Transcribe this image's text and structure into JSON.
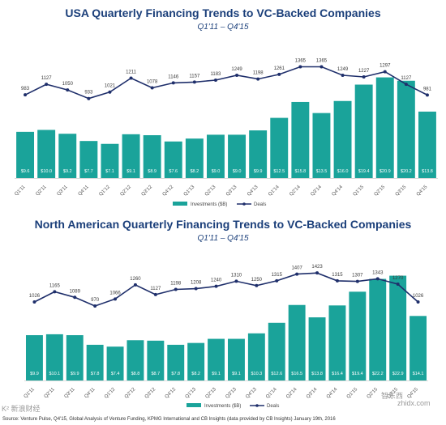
{
  "colors": {
    "bar": "#1aa39a",
    "line": "#1f2f6b",
    "title": "#1b3f7a"
  },
  "chart_data": [
    {
      "type": "bar",
      "title": "USA Quarterly Financing Trends to VC-Backed Companies",
      "subtitle": "Q1'11 – Q4'15",
      "categories": [
        "Q1'11",
        "Q2'11",
        "Q3'11",
        "Q4'11",
        "Q1'12",
        "Q2'12",
        "Q3'12",
        "Q4'12",
        "Q1'13",
        "Q2'13",
        "Q3'13",
        "Q4'13",
        "Q1'14",
        "Q2'14",
        "Q3'14",
        "Q4'14",
        "Q1'15",
        "Q2'15",
        "Q3'15",
        "Q4'15"
      ],
      "series": [
        {
          "name": "Investments ($B)",
          "type": "bar",
          "values": [
            9.6,
            10.0,
            9.2,
            7.7,
            7.1,
            9.1,
            8.9,
            7.6,
            8.2,
            9.0,
            9.0,
            9.9,
            12.5,
            15.8,
            13.5,
            16.0,
            19.4,
            20.9,
            20.2,
            13.8
          ],
          "labels": [
            "$9.6",
            "$10.0",
            "$9.2",
            "$7.7",
            "$7.1",
            "$9.1",
            "$8.9",
            "$7.6",
            "$8.2",
            "$9.0",
            "$9.0",
            "$9.9",
            "$12.5",
            "$15.8",
            "$13.5",
            "$16.0",
            "$19.4",
            "$20.9",
            "$20.2",
            "$13.8"
          ]
        },
        {
          "name": "Deals",
          "type": "line",
          "values": [
            983,
            1127,
            1050,
            933,
            1021,
            1211,
            1078,
            1146,
            1157,
            1183,
            1249,
            1198,
            1261,
            1365,
            1365,
            1249,
            1227,
            1297,
            1127,
            981
          ]
        }
      ]
    },
    {
      "type": "bar",
      "title": "North American Quarterly Financing Trends to VC-Backed Companies",
      "subtitle": "Q1'11 – Q4'15",
      "categories": [
        "Q1'11",
        "Q2'11",
        "Q3'11",
        "Q4'11",
        "Q1'12",
        "Q2'12",
        "Q3'12",
        "Q4'12",
        "Q1'13",
        "Q2'13",
        "Q3'13",
        "Q4'13",
        "Q1'14",
        "Q2'14",
        "Q3'14",
        "Q4'14",
        "Q1'15",
        "Q2'15",
        "Q3'15",
        "Q4'15"
      ],
      "series": [
        {
          "name": "Investments ($B)",
          "type": "bar",
          "values": [
            9.9,
            10.1,
            9.9,
            7.8,
            7.4,
            8.8,
            8.7,
            7.8,
            8.2,
            9.1,
            9.1,
            10.3,
            12.6,
            16.5,
            13.8,
            16.4,
            19.4,
            22.2,
            22.9,
            14.1
          ],
          "labels": [
            "$9.9",
            "$10.1",
            "$9.9",
            "$7.8",
            "$7.4",
            "$8.8",
            "$8.7",
            "$7.8",
            "$8.2",
            "$9.1",
            "$9.1",
            "$10.3",
            "$12.6",
            "$16.5",
            "$13.8",
            "$16.4",
            "$19.4",
            "$22.2",
            "$22.9",
            "$14.1"
          ]
        },
        {
          "name": "Deals",
          "type": "line",
          "values": [
            1026,
            1165,
            1089,
            970,
            1066,
            1260,
            1127,
            1198,
            1208,
            1240,
            1310,
            1250,
            1315,
            1407,
            1423,
            1315,
            1307,
            1343,
            1270,
            1026
          ]
        }
      ]
    }
  ],
  "footer": {
    "source": "Source: Venture Pulse, Q4'15, Global Analysis of Venture Funding, KPMG International and CB Insights (data provided by CB Insights) January 19th, 2016",
    "watermark_left": "K² 新浪财经",
    "watermark_right": "智东西",
    "watermark_url": "zhidx.com"
  }
}
